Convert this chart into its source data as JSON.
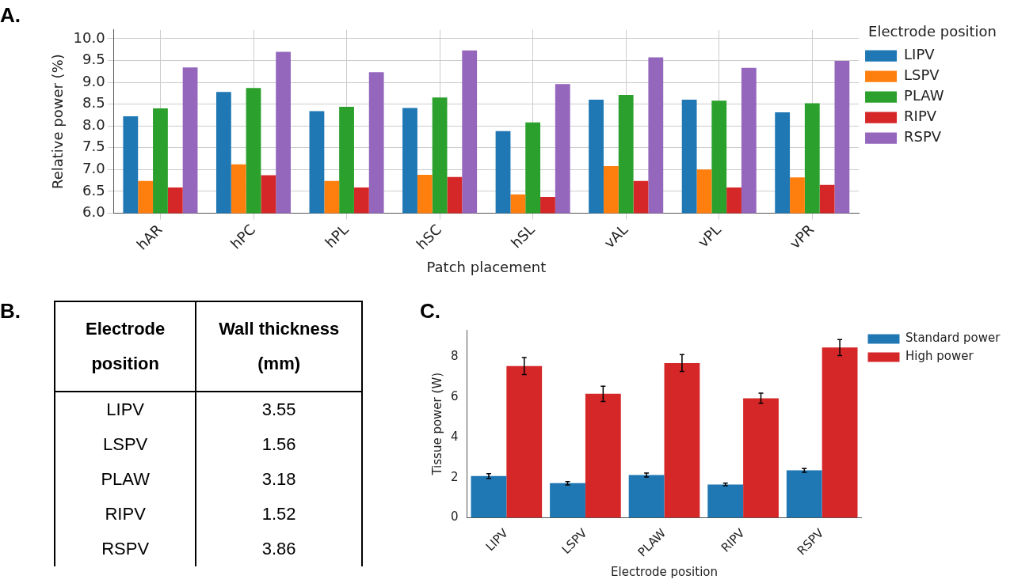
{
  "chart_data": [
    {
      "type": "bar",
      "title": "A.",
      "xlabel": "Patch placement",
      "ylabel": "Relative power (%)",
      "legend_title": "Electrode position",
      "legend": "right",
      "grid": true,
      "categories": [
        "hAR",
        "hPC",
        "hPL",
        "hSC",
        "hSL",
        "vAL",
        "vPL",
        "vPR"
      ],
      "ylim": [
        6,
        10.2
      ],
      "yticks": [
        {
          "value": 6,
          "label": "6.0"
        },
        {
          "value": 6.5,
          "label": "6.5"
        },
        {
          "value": 7,
          "label": "7.0"
        },
        {
          "value": 7.5,
          "label": "7.5"
        },
        {
          "value": 8,
          "label": "8.0"
        },
        {
          "value": 8.5,
          "label": "8.5"
        },
        {
          "value": 9,
          "label": "9.0"
        },
        {
          "value": 9.5,
          "label": "9.5"
        },
        {
          "value": 10,
          "label": "10.0"
        }
      ],
      "series": [
        {
          "name": "LIPV",
          "color": "#1f77b4",
          "values": [
            8.22,
            8.78,
            8.34,
            8.41,
            7.88,
            8.6,
            8.6,
            8.31
          ]
        },
        {
          "name": "LSPV",
          "color": "#ff7f0e",
          "values": [
            6.74,
            7.12,
            6.74,
            6.88,
            6.43,
            7.08,
            7.0,
            6.82
          ]
        },
        {
          "name": "PLAW",
          "color": "#2ca02c",
          "values": [
            8.4,
            8.87,
            8.44,
            8.65,
            8.08,
            8.71,
            8.58,
            8.52
          ]
        },
        {
          "name": "RIPV",
          "color": "#d62728",
          "values": [
            6.59,
            6.87,
            6.59,
            6.83,
            6.37,
            6.74,
            6.59,
            6.65
          ]
        },
        {
          "name": "RSPV",
          "color": "#9467bd",
          "values": [
            9.34,
            9.7,
            9.23,
            9.73,
            8.96,
            9.57,
            9.33,
            9.49
          ]
        }
      ]
    },
    {
      "type": "other",
      "title": "B.",
      "xlabel": "Electrode position",
      "ylabel": "Wall thickness (mm)",
      "data_labels": true,
      "categories": [
        "LIPV",
        "LSPV",
        "PLAW",
        "RIPV",
        "RSPV"
      ],
      "values": [
        3.55,
        1.56,
        3.18,
        1.52,
        3.86
      ]
    },
    {
      "type": "bar",
      "title": "C.",
      "xlabel": "Electrode position",
      "ylabel": "Tissue power (W)",
      "legend": "top right",
      "grid": false,
      "categories": [
        "LIPV",
        "LSPV",
        "PLAW",
        "RIPV",
        "RSPV"
      ],
      "ylim": [
        0,
        9.35
      ],
      "yticks": [
        0,
        2,
        4,
        6,
        8
      ],
      "series": [
        {
          "name": "Standard power",
          "color": "#1f77b4",
          "values": [
            2.08,
            1.72,
            2.13,
            1.66,
            2.36
          ],
          "errors": [
            0.12,
            0.08,
            0.1,
            0.06,
            0.09
          ]
        },
        {
          "name": "High power",
          "color": "#d62728",
          "values": [
            7.55,
            6.17,
            7.7,
            5.95,
            8.47
          ],
          "errors": [
            0.42,
            0.38,
            0.42,
            0.25,
            0.4
          ]
        }
      ]
    }
  ]
}
